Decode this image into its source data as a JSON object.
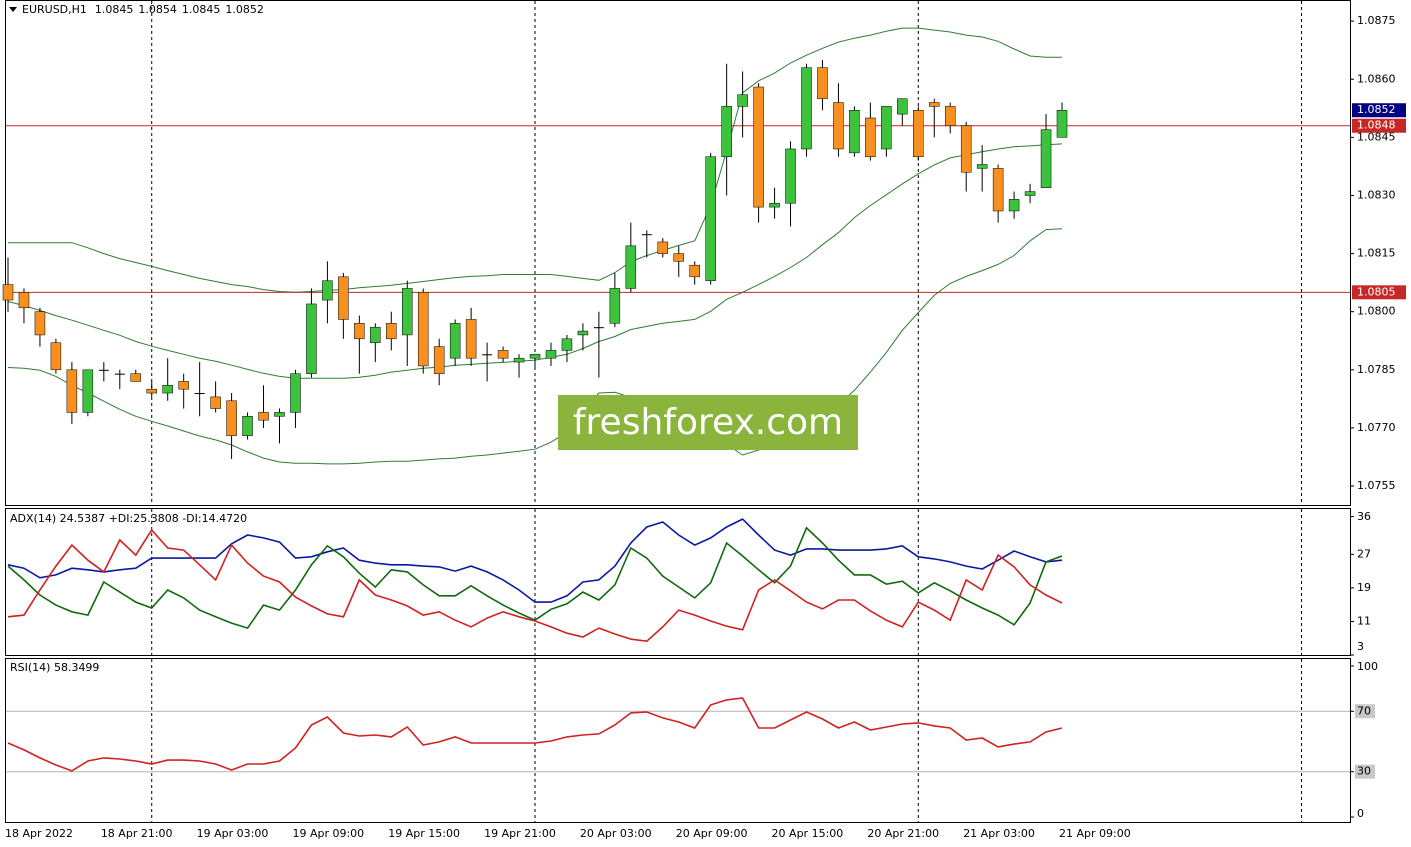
{
  "chart_data": [
    {
      "type": "candlestick",
      "title": "EURUSD,H1",
      "watermark": "freshforex.com",
      "categories": [
        "18 Apr 2022",
        null,
        null,
        null,
        null,
        null,
        "18 Apr 21:00",
        null,
        null,
        null,
        null,
        null,
        "19 Apr 03:00",
        null,
        null,
        null,
        null,
        null,
        "19 Apr 09:00",
        null,
        null,
        null,
        null,
        null,
        "19 Apr 15:00",
        null,
        null,
        null,
        null,
        null,
        "19 Apr 21:00",
        null,
        null,
        null,
        null,
        null,
        "20 Apr 03:00",
        null,
        null,
        null,
        null,
        null,
        "20 Apr 09:00",
        null,
        null,
        null,
        null,
        null,
        "20 Apr 15:00",
        null,
        null,
        null,
        null,
        null,
        "20 Apr 21:00",
        null,
        null,
        null,
        null,
        null,
        "21 Apr 03:00",
        null,
        null,
        null,
        null,
        null,
        "21 Apr 09:00"
      ],
      "open": [
        1.0807,
        1.0805,
        1.08,
        1.0792,
        1.0785,
        1.0774,
        1.0785,
        1.0784,
        1.0784,
        1.078,
        1.0779,
        1.0782,
        1.0779,
        1.0778,
        1.0777,
        1.0768,
        1.0774,
        1.0773,
        1.0774,
        1.0784,
        1.0803,
        1.0809,
        1.0797,
        1.0792,
        1.0797,
        1.0794,
        1.0805,
        1.0791,
        1.0788,
        1.0798,
        1.0789,
        1.079,
        1.0787,
        1.0788,
        1.0788,
        1.079,
        1.0794,
        1.0796,
        1.0797,
        1.0806,
        1.082,
        1.0818,
        1.0815,
        1.0812,
        1.0808,
        1.084,
        1.0853,
        1.0858,
        1.0827,
        1.0828,
        1.0842,
        1.0863,
        1.0854,
        1.0841,
        1.085,
        1.0842,
        1.0851,
        1.0852,
        1.0854,
        1.0853,
        1.0848,
        1.0837,
        1.0837,
        1.0826,
        1.083,
        1.0832,
        1.0845
      ],
      "high": [
        1.0814,
        1.0806,
        1.0801,
        1.0793,
        1.0787,
        1.0785,
        1.0787,
        1.0785,
        1.0785,
        1.0782,
        1.0788,
        1.0784,
        1.0787,
        1.0782,
        1.0779,
        1.0774,
        1.0781,
        1.0775,
        1.0785,
        1.0806,
        1.0813,
        1.081,
        1.0799,
        1.0797,
        1.08,
        1.0808,
        1.0806,
        1.0793,
        1.0798,
        1.0801,
        1.0792,
        1.0791,
        1.0789,
        1.0789,
        1.0792,
        1.0794,
        1.0797,
        1.08,
        1.081,
        1.0823,
        1.0821,
        1.0819,
        1.0817,
        1.0813,
        1.0841,
        1.0864,
        1.0862,
        1.0859,
        1.0832,
        1.0844,
        1.0864,
        1.0865,
        1.0859,
        1.0853,
        1.0854,
        1.0853,
        1.0855,
        1.0853,
        1.0855,
        1.0854,
        1.0849,
        1.0843,
        1.0838,
        1.0831,
        1.0833,
        1.0851,
        1.0854
      ],
      "low": [
        1.08,
        1.0797,
        1.0791,
        1.0784,
        1.0771,
        1.0773,
        1.0782,
        1.078,
        1.0782,
        1.0778,
        1.0777,
        1.0775,
        1.0773,
        1.0774,
        1.0762,
        1.0767,
        1.077,
        1.0766,
        1.077,
        1.0783,
        1.0797,
        1.0793,
        1.0784,
        1.0787,
        1.079,
        1.0786,
        1.0784,
        1.0781,
        1.0786,
        1.0786,
        1.0782,
        1.0787,
        1.0783,
        1.0785,
        1.0786,
        1.0787,
        1.079,
        1.0783,
        1.0796,
        1.0805,
        1.0814,
        1.0814,
        1.0809,
        1.0807,
        1.0807,
        1.083,
        1.0845,
        1.0823,
        1.0824,
        1.0822,
        1.084,
        1.0852,
        1.084,
        1.084,
        1.0839,
        1.084,
        1.0848,
        1.0839,
        1.0845,
        1.0846,
        1.0831,
        1.0831,
        1.0823,
        1.0824,
        1.0828,
        1.0832,
        1.0845
      ],
      "close": [
        1.0803,
        1.0801,
        1.0794,
        1.0785,
        1.0774,
        1.0785,
        1.0785,
        1.0784,
        1.0782,
        1.0779,
        1.0781,
        1.078,
        1.0779,
        1.0775,
        1.0768,
        1.0773,
        1.0772,
        1.0774,
        1.0784,
        1.0802,
        1.0808,
        1.0798,
        1.0793,
        1.0796,
        1.0793,
        1.0806,
        1.0786,
        1.0784,
        1.0797,
        1.0788,
        1.0789,
        1.0788,
        1.0788,
        1.0789,
        1.079,
        1.0793,
        1.0795,
        1.0796,
        1.0806,
        1.0817,
        1.082,
        1.0815,
        1.0813,
        1.0809,
        1.084,
        1.0853,
        1.0856,
        1.0827,
        1.0828,
        1.0842,
        1.0863,
        1.0855,
        1.0842,
        1.0852,
        1.084,
        1.0853,
        1.0855,
        1.084,
        1.0853,
        1.0848,
        1.0836,
        1.0838,
        1.0826,
        1.0829,
        1.0831,
        1.0847,
        1.0852
      ],
      "up_color": "#3cc23c",
      "down_color": "#f7901e",
      "last_price_color": "#000080",
      "bands": {
        "color": "#2e7d32",
        "upper": [
          1.08178,
          1.08178,
          1.08178,
          1.08178,
          1.08178,
          1.08165,
          1.0815,
          1.08137,
          1.08127,
          1.08117,
          1.08106,
          1.08096,
          1.08086,
          1.08078,
          1.0807,
          1.08065,
          1.08057,
          1.08052,
          1.0805,
          1.08052,
          1.08055,
          1.08057,
          1.08062,
          1.08065,
          1.08068,
          1.08073,
          1.08078,
          1.08083,
          1.08088,
          1.08091,
          1.08093,
          1.08096,
          1.08096,
          1.08096,
          1.08096,
          1.08091,
          1.08086,
          1.08081,
          1.08101,
          1.08129,
          1.08145,
          1.08158,
          1.08171,
          1.08183,
          1.08274,
          1.08415,
          1.08565,
          1.08596,
          1.08616,
          1.08642,
          1.08662,
          1.0868,
          1.08696,
          1.08706,
          1.08714,
          1.08724,
          1.08732,
          1.08732,
          1.08727,
          1.08722,
          1.08714,
          1.08709,
          1.08698,
          1.08678,
          1.0866,
          1.08657,
          1.08657
        ],
        "middle": [
          1.08026,
          1.08016,
          1.08003,
          1.0799,
          1.07978,
          1.07965,
          1.07952,
          1.07939,
          1.07923,
          1.07911,
          1.079,
          1.0789,
          1.0788,
          1.07872,
          1.07862,
          1.07851,
          1.07841,
          1.07833,
          1.07828,
          1.07828,
          1.07828,
          1.07828,
          1.07831,
          1.07836,
          1.07844,
          1.07849,
          1.07854,
          1.07857,
          1.07862,
          1.07864,
          1.07867,
          1.07869,
          1.07872,
          1.07875,
          1.07882,
          1.0789,
          1.07905,
          1.07923,
          1.07936,
          1.07954,
          1.07962,
          1.0797,
          1.07975,
          1.0798,
          1.08001,
          1.08032,
          1.0805,
          1.0807,
          1.08091,
          1.08114,
          1.0814,
          1.08173,
          1.08204,
          1.08243,
          1.08274,
          1.08302,
          1.0833,
          1.08356,
          1.08379,
          1.08397,
          1.08405,
          1.08413,
          1.0842,
          1.08426,
          1.08428,
          1.08431,
          1.08433
        ],
        "lower": [
          1.07856,
          1.07854,
          1.07849,
          1.07833,
          1.0781,
          1.0779,
          1.07769,
          1.07748,
          1.0773,
          1.07717,
          1.07705,
          1.07692,
          1.07679,
          1.07669,
          1.07656,
          1.07638,
          1.07622,
          1.07612,
          1.07609,
          1.07609,
          1.07607,
          1.07607,
          1.07609,
          1.07612,
          1.07614,
          1.07614,
          1.07617,
          1.0762,
          1.07622,
          1.07627,
          1.0763,
          1.07635,
          1.0764,
          1.07645,
          1.07663,
          1.07689,
          1.07746,
          1.0779,
          1.07792,
          1.07779,
          1.07766,
          1.07746,
          1.07725,
          1.07707,
          1.07689,
          1.07658,
          1.0763,
          1.07643,
          1.07656,
          1.07681,
          1.07699,
          1.07725,
          1.07759,
          1.07797,
          1.07844,
          1.07895,
          1.07952,
          1.07998,
          1.08042,
          1.08073,
          1.08091,
          1.08106,
          1.08122,
          1.08145,
          1.08183,
          1.08212,
          1.08214
        ]
      },
      "hlines": [
        {
          "value": 1.0848,
          "color": "#c62828"
        },
        {
          "value": 1.0805,
          "color": "#c62828"
        }
      ],
      "ylim": [
        1.07501,
        1.08802
      ],
      "yticks": [
        1.0875,
        {
          "value": 1.086,
          "label": "1.0860"
        },
        1.0845,
        {
          "value": 1.083,
          "label": "1.0830"
        },
        1.0815,
        {
          "value": 1.08,
          "label": "1.0800"
        },
        1.0785,
        {
          "value": 1.077,
          "label": "1.0770"
        },
        1.0755
      ]
    },
    {
      "type": "line",
      "title": "ADX(14) 24.5387 +DI:25.3808 -DI:14.4720",
      "series": [
        {
          "color": "#0a1aa0",
          "values": [
            24.5,
            23.7,
            21.4,
            22.1,
            23.7,
            23.3,
            22.8,
            23.3,
            23.7,
            26.1,
            26.1,
            26.1,
            26.1,
            26.1,
            29.5,
            31.6,
            30.9,
            29.9,
            26.1,
            26.4,
            27.6,
            28.5,
            25.6,
            24.9,
            24.5,
            24.5,
            24.2,
            24,
            23,
            24.2,
            22.8,
            20.9,
            18.5,
            15.6,
            15.6,
            17.1,
            20.4,
            20.9,
            24.2,
            29.7,
            33.5,
            34.7,
            31.6,
            29.2,
            30.9,
            33.5,
            35.4,
            31.6,
            28,
            26.8,
            28.3,
            28.3,
            28,
            28,
            28,
            28.3,
            29,
            26.4,
            25.9,
            25.2,
            24.2,
            23.5,
            25.6,
            27.8,
            26.4,
            25.2,
            25.6
          ]
        },
        {
          "color": "#0e6b0e",
          "values": [
            24.2,
            20.9,
            17.3,
            14.9,
            13.3,
            12.5,
            20.4,
            18,
            15.6,
            14.2,
            18.5,
            16.6,
            13.7,
            12.1,
            10.6,
            9.4,
            14.9,
            13.7,
            18.5,
            24.5,
            29,
            26.4,
            22.5,
            19.2,
            23.3,
            22.8,
            19.7,
            17.1,
            17.1,
            19.5,
            17.1,
            14.9,
            13,
            11.3,
            13.9,
            15.2,
            18,
            16.1,
            19.7,
            28.5,
            26.1,
            21.8,
            19.2,
            16.6,
            20.2,
            29.7,
            26.6,
            23.3,
            20.2,
            24.2,
            33.3,
            29.7,
            25.6,
            22.1,
            22.1,
            19.9,
            20.6,
            17.8,
            20.2,
            18.3,
            16.1,
            14.2,
            12.5,
            10.2,
            15.4,
            25.2,
            26.6
          ]
        },
        {
          "color": "#d32020",
          "values": [
            12.1,
            12.5,
            18.5,
            24.2,
            29.2,
            25.6,
            22.8,
            30.4,
            26.8,
            32.8,
            28.5,
            28,
            24.5,
            20.9,
            29.2,
            24.9,
            21.8,
            20.4,
            16.8,
            14.7,
            12.8,
            12.1,
            20.9,
            17.3,
            16.1,
            14.7,
            12.5,
            13.3,
            11.3,
            9.7,
            11.8,
            13.3,
            12.1,
            11.1,
            9.7,
            8.2,
            7.3,
            9.4,
            8,
            6.8,
            6.3,
            9.7,
            13.7,
            12.5,
            11.1,
            9.9,
            9,
            18.5,
            20.9,
            18.3,
            15.6,
            14,
            16.1,
            16.1,
            13.5,
            11.3,
            9.7,
            15.6,
            13.7,
            11.3,
            20.9,
            18.5,
            26.8,
            24,
            19.7,
            17.3,
            15.4
          ]
        }
      ],
      "ylim": [
        3,
        37.8
      ],
      "yticks": [
        3,
        11,
        19,
        27,
        36
      ]
    },
    {
      "type": "line",
      "title": "RSI(14) 58.3499",
      "series": [
        {
          "color": "#d32020",
          "values": [
            49,
            44.4,
            39.1,
            34.4,
            30.5,
            37.1,
            39.1,
            38.4,
            37.1,
            35.1,
            37.7,
            37.7,
            37.1,
            35.1,
            31.1,
            35.1,
            35.1,
            37.1,
            45.7,
            60.9,
            66.2,
            55.6,
            53.6,
            54.3,
            53,
            59.6,
            47.7,
            49.7,
            53,
            49,
            49,
            49,
            49,
            49,
            50.3,
            53,
            54.3,
            55,
            60.9,
            68.9,
            69.5,
            65.6,
            62.9,
            58.9,
            74.2,
            77.5,
            78.8,
            58.9,
            58.9,
            64.2,
            69.5,
            64.9,
            58.9,
            62.9,
            57.6,
            59.6,
            61.6,
            62.3,
            60.3,
            58.9,
            51,
            52.3,
            46.4,
            48.3,
            49.7,
            56.3,
            58.9
          ]
        }
      ],
      "levels": [
        30,
        70
      ],
      "ylim": [
        -3.3,
        104.6
      ],
      "yticks": [
        0,
        30,
        70,
        100
      ]
    }
  ]
}
